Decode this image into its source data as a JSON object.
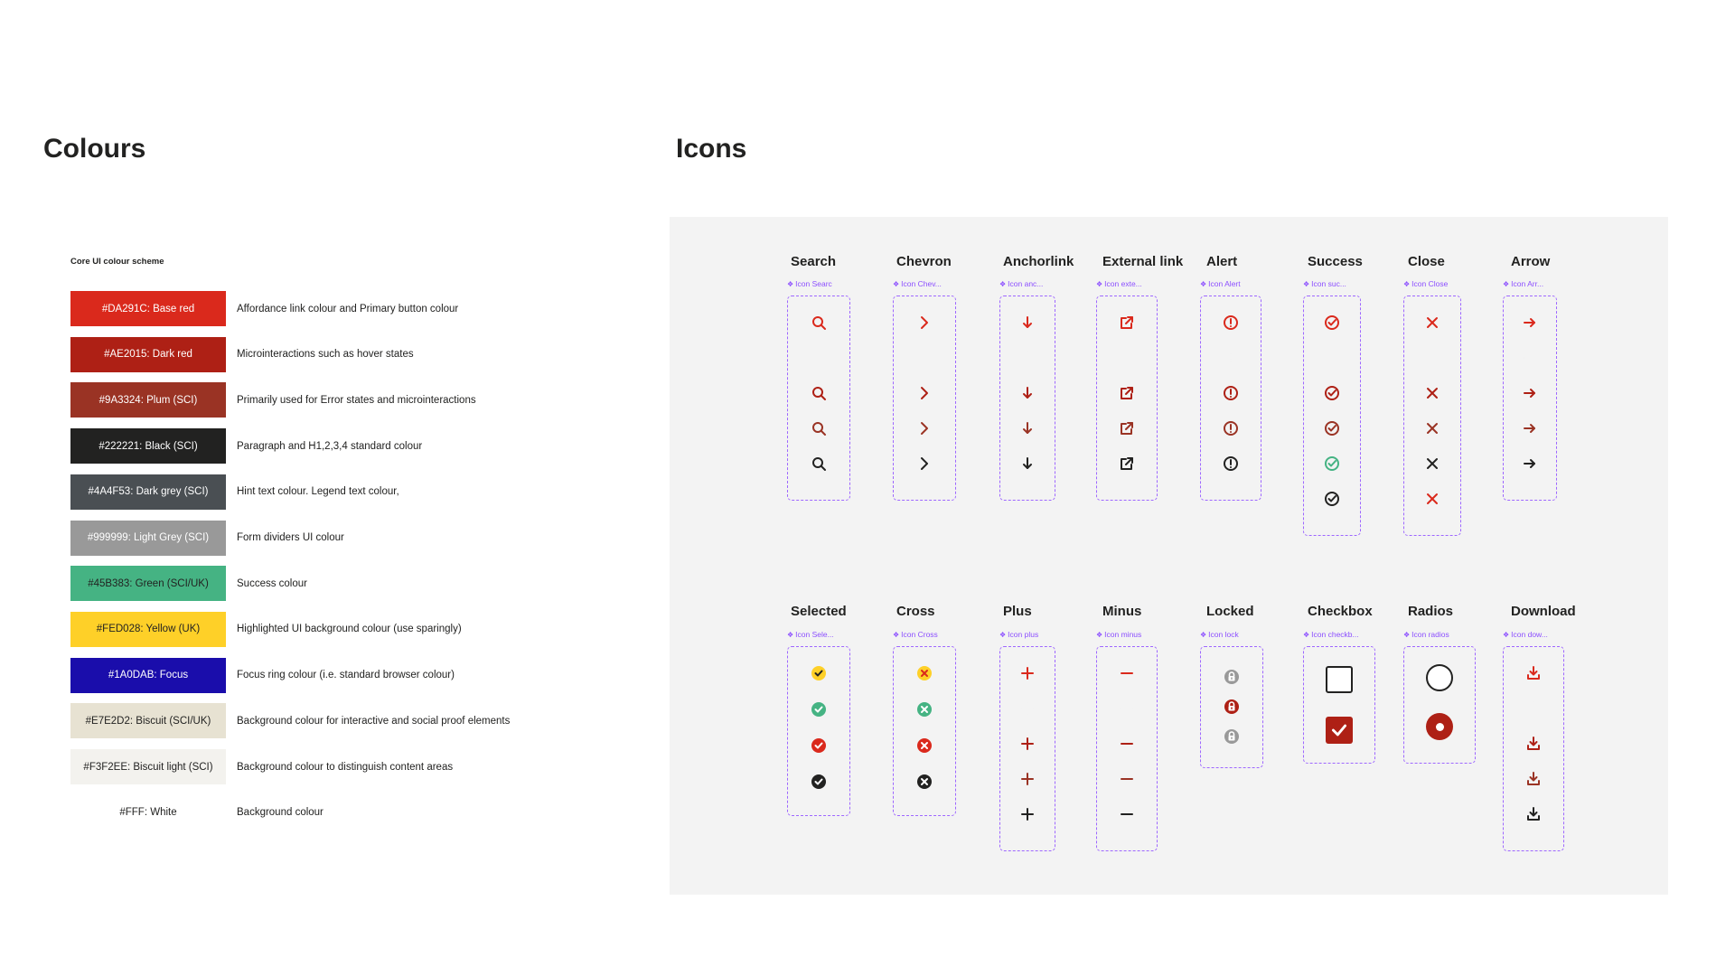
{
  "colours": {
    "heading": "Colours",
    "scheme_title": "Core UI colour scheme",
    "items": [
      {
        "swatch_label": "#DA291C: Base red",
        "hex": "#DA291C",
        "text_color": "#ffffff",
        "description": "Affordance link colour and Primary  button colour"
      },
      {
        "swatch_label": "#AE2015: Dark red",
        "hex": "#AE2015",
        "text_color": "#ffffff",
        "description": "Microinteractions such as hover states"
      },
      {
        "swatch_label": "#9A3324: Plum (SCI)",
        "hex": "#9A3324",
        "text_color": "#ffffff",
        "description": "Primarily used for Error states and microinteractions"
      },
      {
        "swatch_label": "#222221: Black (SCI)",
        "hex": "#222221",
        "text_color": "#ffffff",
        "description": "Paragraph and H1,2,3,4 standard colour"
      },
      {
        "swatch_label": "#4A4F53: Dark grey (SCI)",
        "hex": "#4A4F53",
        "text_color": "#ffffff",
        "description": "Hint text colour. Legend text colour,"
      },
      {
        "swatch_label": "#999999: Light Grey (SCI)",
        "hex": "#999999",
        "text_color": "#ffffff",
        "description": "Form dividers UI colour"
      },
      {
        "swatch_label": "#45B383: Green (SCI/UK)",
        "hex": "#45B383",
        "text_color": "#222221",
        "description": "Success colour"
      },
      {
        "swatch_label": "#FED028: Yellow (UK)",
        "hex": "#FED028",
        "text_color": "#222221",
        "description": "Highlighted UI background colour (use sparingly)"
      },
      {
        "swatch_label": "#1A0DAB: Focus",
        "hex": "#1A0DAB",
        "text_color": "#ffffff",
        "description": "Focus ring colour (i.e. standard browser colour)"
      },
      {
        "swatch_label": "#E7E2D2: Biscuit (SCI/UK)",
        "hex": "#E7E2D2",
        "text_color": "#222221",
        "description": "Background colour for interactive and social proof elements"
      },
      {
        "swatch_label": "#F3F2EE: Biscuit light (SCI)",
        "hex": "#F3F2EE",
        "text_color": "#222221",
        "description": "Background colour to distinguish content areas"
      },
      {
        "swatch_label": "#FFF: White",
        "hex": "#FFFFFF",
        "text_color": "#222221",
        "description": "Background colour"
      }
    ]
  },
  "icons": {
    "heading": "Icons",
    "frame_color": "#9E67FF",
    "rows": [
      [
        {
          "title": "Search",
          "component": "Icon Searc",
          "icon": "search-icon",
          "variants": [
            "#DA291C",
            "#F3F3F3",
            "#AE2015",
            "#9A3324",
            "#222221"
          ]
        },
        {
          "title": "Chevron",
          "component": "Icon Chev...",
          "icon": "chevron-right-icon",
          "variants": [
            "#DA291C",
            "#F3F3F3",
            "#AE2015",
            "#9A3324",
            "#222221"
          ]
        },
        {
          "title": "Anchorlink",
          "component": "Icon anc...",
          "icon": "arrow-down-icon",
          "variants": [
            "#DA291C",
            "#F3F3F3",
            "#AE2015",
            "#9A3324",
            "#222221"
          ]
        },
        {
          "title": "External link",
          "component": "Icon exte...",
          "icon": "external-link-icon",
          "variants": [
            "#DA291C",
            "#F3F3F3",
            "#AE2015",
            "#9A3324",
            "#222221"
          ]
        },
        {
          "title": "Alert",
          "component": "Icon Alert",
          "icon": "alert-icon",
          "variants": [
            "#DA291C",
            "#F3F3F3",
            "#AE2015",
            "#9A3324",
            "#222221"
          ]
        },
        {
          "title": "Success",
          "component": "Icon suc...",
          "icon": "success-check-icon",
          "variants": [
            "#DA291C",
            "#F3F3F3",
            "#AE2015",
            "#9A3324",
            "#45B383",
            "#222221"
          ]
        },
        {
          "title": "Close",
          "component": "Icon Close",
          "icon": "close-icon",
          "variants": [
            "#DA291C",
            "#F3F3F3",
            "#AE2015",
            "#9A3324",
            "#222221",
            "#DA291C"
          ]
        },
        {
          "title": "Arrow",
          "component": "Icon Arr...",
          "icon": "arrow-right-icon",
          "variants": [
            "#DA291C",
            "#F3F3F3",
            "#AE2015",
            "#9A3324",
            "#222221"
          ]
        }
      ],
      [
        {
          "title": "Selected",
          "component": "Icon Sele...",
          "icon": "selected-icon",
          "variants": [
            "#FED028",
            "#45B383",
            "#DA291C",
            "#222221"
          ]
        },
        {
          "title": "Cross",
          "component": "Icon Cross",
          "icon": "cross-circle-icon",
          "variants": [
            "#FED028",
            "#45B383",
            "#DA291C",
            "#222221"
          ]
        },
        {
          "title": "Plus",
          "component": "Icon plus",
          "icon": "plus-icon",
          "variants": [
            "#DA291C",
            "#F3F3F3",
            "#AE2015",
            "#9A3324",
            "#222221"
          ]
        },
        {
          "title": "Minus",
          "component": "Icon minus",
          "icon": "minus-icon",
          "variants": [
            "#DA291C",
            "#F3F3F3",
            "#AE2015",
            "#9A3324",
            "#222221"
          ]
        },
        {
          "title": "Locked",
          "component": "Icon lock",
          "icon": "lock-icon",
          "variants": [
            "#999999",
            "#AE2015",
            "#999999"
          ]
        },
        {
          "title": "Checkbox",
          "component": "Icon checkb...",
          "icon": "checkbox-icon",
          "variants": [
            "unchecked",
            "checked"
          ]
        },
        {
          "title": "Radios",
          "component": "Icon radios",
          "icon": "radio-icon",
          "variants": [
            "unselected",
            "selected"
          ]
        },
        {
          "title": "Download",
          "component": "Icon dow...",
          "icon": "download-icon",
          "variants": [
            "#DA291C",
            "#F3F3F3",
            "#AE2015",
            "#9A3324",
            "#222221"
          ]
        }
      ]
    ]
  }
}
